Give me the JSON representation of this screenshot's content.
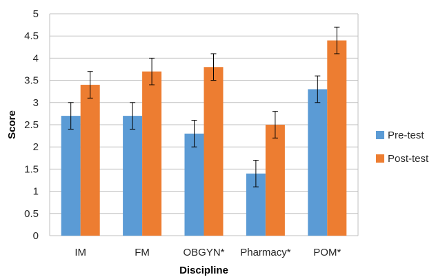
{
  "chart_data": {
    "type": "bar",
    "title": "",
    "xlabel": "Discipline",
    "ylabel": "Score",
    "ylim": [
      0,
      5
    ],
    "y_ticks": [
      "0",
      "0.5",
      "1",
      "1.5",
      "2",
      "2.5",
      "3",
      "3.5",
      "4",
      "4.5",
      "5"
    ],
    "categories": [
      "IM",
      "FM",
      "OBGYN*",
      "Pharmacy*",
      "POM*"
    ],
    "series": [
      {
        "name": "Pre-test",
        "color": "#5b9bd5",
        "values": [
          2.7,
          2.7,
          2.3,
          1.4,
          3.3
        ],
        "error": [
          0.3,
          0.3,
          0.3,
          0.3,
          0.3
        ]
      },
      {
        "name": "Post-test",
        "color": "#ed7d31",
        "values": [
          3.4,
          3.7,
          3.8,
          2.5,
          4.4
        ],
        "error": [
          0.3,
          0.3,
          0.3,
          0.3,
          0.3
        ]
      }
    ],
    "grid": true,
    "legend_position": "right"
  }
}
